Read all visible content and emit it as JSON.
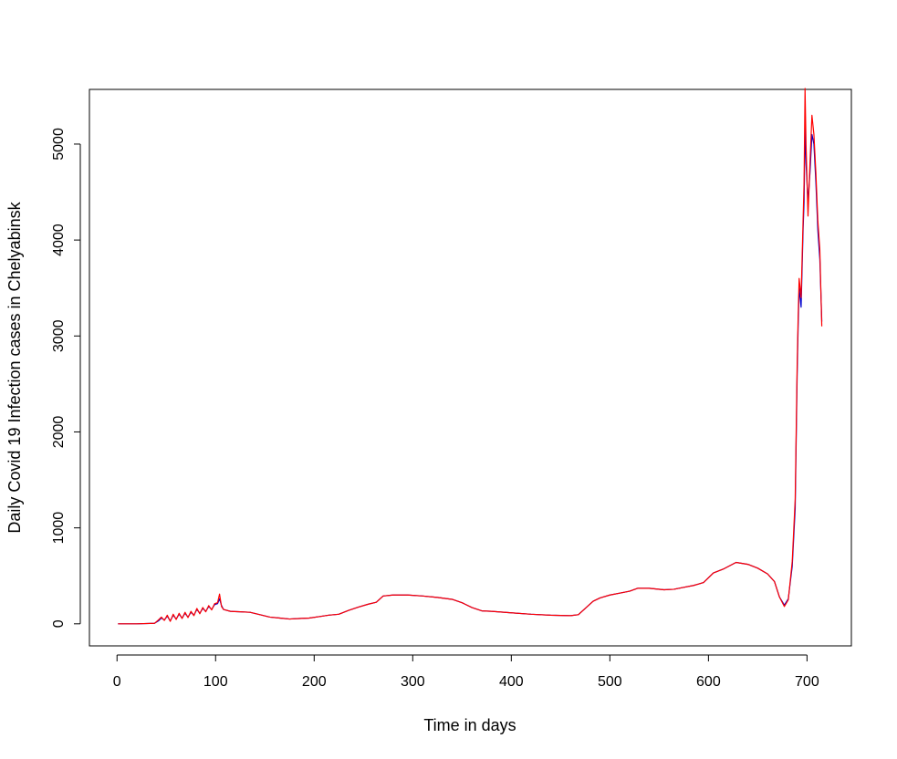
{
  "chart_data": {
    "type": "line",
    "title": "",
    "xlabel": "Time in days",
    "ylabel": "Daily Covid 19 Infection cases in Chelyabinsk",
    "xlim": [
      -28,
      745
    ],
    "ylim": [
      -230,
      5570
    ],
    "xticks": [
      0,
      100,
      200,
      300,
      400,
      500,
      600,
      700
    ],
    "yticks": [
      0,
      1000,
      2000,
      3000,
      4000,
      5000
    ],
    "grid": false,
    "legend": "none",
    "series": [
      {
        "color": "#0000CD",
        "points": [
          [
            1,
            0
          ],
          [
            20,
            0
          ],
          [
            38,
            5
          ],
          [
            42,
            30
          ],
          [
            45,
            60
          ],
          [
            48,
            40
          ],
          [
            51,
            80
          ],
          [
            54,
            30
          ],
          [
            57,
            90
          ],
          [
            60,
            50
          ],
          [
            63,
            100
          ],
          [
            66,
            60
          ],
          [
            69,
            110
          ],
          [
            72,
            70
          ],
          [
            75,
            120
          ],
          [
            78,
            90
          ],
          [
            81,
            150
          ],
          [
            84,
            110
          ],
          [
            87,
            160
          ],
          [
            90,
            130
          ],
          [
            93,
            180
          ],
          [
            96,
            150
          ],
          [
            99,
            200
          ],
          [
            102,
            210
          ],
          [
            104,
            260
          ],
          [
            106,
            190
          ],
          [
            108,
            150
          ],
          [
            115,
            130
          ],
          [
            125,
            125
          ],
          [
            135,
            120
          ],
          [
            145,
            95
          ],
          [
            155,
            70
          ],
          [
            165,
            60
          ],
          [
            175,
            50
          ],
          [
            185,
            55
          ],
          [
            195,
            60
          ],
          [
            205,
            75
          ],
          [
            215,
            90
          ],
          [
            225,
            100
          ],
          [
            235,
            140
          ],
          [
            245,
            175
          ],
          [
            255,
            205
          ],
          [
            263,
            225
          ],
          [
            270,
            290
          ],
          [
            280,
            300
          ],
          [
            295,
            300
          ],
          [
            310,
            290
          ],
          [
            325,
            275
          ],
          [
            340,
            255
          ],
          [
            350,
            220
          ],
          [
            360,
            170
          ],
          [
            370,
            135
          ],
          [
            380,
            130
          ],
          [
            400,
            115
          ],
          [
            420,
            100
          ],
          [
            440,
            90
          ],
          [
            460,
            85
          ],
          [
            468,
            95
          ],
          [
            475,
            160
          ],
          [
            483,
            235
          ],
          [
            490,
            270
          ],
          [
            500,
            300
          ],
          [
            510,
            320
          ],
          [
            520,
            340
          ],
          [
            528,
            370
          ],
          [
            540,
            370
          ],
          [
            555,
            355
          ],
          [
            565,
            360
          ],
          [
            575,
            380
          ],
          [
            585,
            400
          ],
          [
            595,
            430
          ],
          [
            605,
            530
          ],
          [
            615,
            570
          ],
          [
            628,
            640
          ],
          [
            640,
            620
          ],
          [
            650,
            580
          ],
          [
            660,
            520
          ],
          [
            667,
            440
          ],
          [
            672,
            280
          ],
          [
            677,
            195
          ],
          [
            681,
            260
          ],
          [
            685,
            600
          ],
          [
            688,
            1200
          ],
          [
            690,
            2600
          ],
          [
            691,
            3100
          ],
          [
            692,
            3500
          ],
          [
            694,
            3300
          ],
          [
            696,
            4100
          ],
          [
            697,
            4400
          ],
          [
            698,
            5200
          ],
          [
            699,
            4800
          ],
          [
            701,
            4400
          ],
          [
            703,
            4700
          ],
          [
            705,
            5100
          ],
          [
            707,
            5000
          ],
          [
            709,
            4600
          ],
          [
            711,
            4100
          ],
          [
            713,
            3800
          ],
          [
            715,
            3150
          ]
        ]
      },
      {
        "color": "#FF0000",
        "points": [
          [
            1,
            0
          ],
          [
            20,
            0
          ],
          [
            38,
            5
          ],
          [
            42,
            40
          ],
          [
            45,
            70
          ],
          [
            48,
            35
          ],
          [
            51,
            90
          ],
          [
            54,
            25
          ],
          [
            57,
            100
          ],
          [
            60,
            45
          ],
          [
            63,
            110
          ],
          [
            66,
            55
          ],
          [
            69,
            120
          ],
          [
            72,
            65
          ],
          [
            75,
            130
          ],
          [
            78,
            85
          ],
          [
            81,
            160
          ],
          [
            84,
            105
          ],
          [
            87,
            170
          ],
          [
            90,
            125
          ],
          [
            93,
            190
          ],
          [
            96,
            145
          ],
          [
            99,
            210
          ],
          [
            102,
            220
          ],
          [
            104,
            310
          ],
          [
            106,
            180
          ],
          [
            108,
            150
          ],
          [
            115,
            130
          ],
          [
            125,
            125
          ],
          [
            135,
            120
          ],
          [
            145,
            95
          ],
          [
            155,
            70
          ],
          [
            165,
            60
          ],
          [
            175,
            50
          ],
          [
            185,
            55
          ],
          [
            195,
            60
          ],
          [
            205,
            75
          ],
          [
            215,
            90
          ],
          [
            225,
            100
          ],
          [
            235,
            140
          ],
          [
            245,
            175
          ],
          [
            255,
            205
          ],
          [
            263,
            225
          ],
          [
            270,
            290
          ],
          [
            280,
            300
          ],
          [
            295,
            300
          ],
          [
            310,
            290
          ],
          [
            325,
            275
          ],
          [
            340,
            255
          ],
          [
            350,
            220
          ],
          [
            360,
            170
          ],
          [
            370,
            135
          ],
          [
            380,
            130
          ],
          [
            400,
            115
          ],
          [
            420,
            100
          ],
          [
            440,
            90
          ],
          [
            460,
            85
          ],
          [
            468,
            95
          ],
          [
            475,
            160
          ],
          [
            483,
            235
          ],
          [
            490,
            270
          ],
          [
            500,
            300
          ],
          [
            510,
            320
          ],
          [
            520,
            340
          ],
          [
            528,
            370
          ],
          [
            540,
            370
          ],
          [
            555,
            355
          ],
          [
            565,
            360
          ],
          [
            575,
            380
          ],
          [
            585,
            400
          ],
          [
            595,
            430
          ],
          [
            605,
            530
          ],
          [
            615,
            570
          ],
          [
            628,
            640
          ],
          [
            640,
            620
          ],
          [
            650,
            580
          ],
          [
            660,
            520
          ],
          [
            667,
            440
          ],
          [
            672,
            280
          ],
          [
            677,
            180
          ],
          [
            681,
            250
          ],
          [
            685,
            650
          ],
          [
            688,
            1300
          ],
          [
            690,
            2700
          ],
          [
            691,
            3200
          ],
          [
            692,
            3600
          ],
          [
            694,
            3400
          ],
          [
            696,
            4200
          ],
          [
            697,
            4600
          ],
          [
            698,
            5580
          ],
          [
            699,
            5000
          ],
          [
            701,
            4250
          ],
          [
            703,
            4800
          ],
          [
            705,
            5300
          ],
          [
            707,
            5100
          ],
          [
            709,
            4700
          ],
          [
            711,
            4200
          ],
          [
            713,
            3900
          ],
          [
            715,
            3100
          ]
        ]
      }
    ]
  }
}
